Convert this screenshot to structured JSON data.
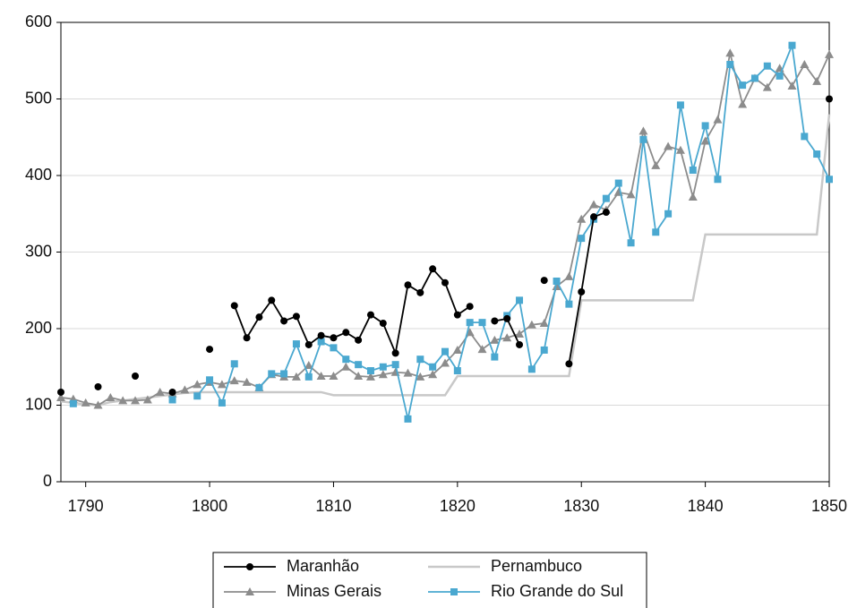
{
  "chart_data": {
    "type": "line",
    "x": [
      1788,
      1789,
      1790,
      1791,
      1792,
      1793,
      1794,
      1795,
      1796,
      1797,
      1798,
      1799,
      1800,
      1801,
      1802,
      1803,
      1804,
      1805,
      1806,
      1807,
      1808,
      1809,
      1810,
      1811,
      1812,
      1813,
      1814,
      1815,
      1816,
      1817,
      1818,
      1819,
      1820,
      1821,
      1822,
      1823,
      1824,
      1825,
      1826,
      1827,
      1828,
      1829,
      1830,
      1831,
      1832,
      1833,
      1834,
      1835,
      1836,
      1837,
      1838,
      1839,
      1840,
      1841,
      1842,
      1843,
      1844,
      1845,
      1846,
      1847,
      1848,
      1849,
      1850
    ],
    "series": [
      {
        "name": "Maranhão",
        "color": "#000000",
        "marker": "circle",
        "values": [
          117,
          null,
          null,
          124,
          null,
          null,
          138,
          null,
          null,
          117,
          null,
          null,
          173,
          null,
          230,
          188,
          215,
          237,
          210,
          216,
          179,
          191,
          188,
          195,
          185,
          218,
          207,
          168,
          257,
          247,
          278,
          260,
          218,
          229,
          null,
          210,
          213,
          179,
          null,
          263,
          null,
          154,
          248,
          346,
          352,
          null,
          null,
          null,
          null,
          null,
          null,
          null,
          null,
          null,
          null,
          null,
          null,
          null,
          null,
          null,
          null,
          null,
          500
        ]
      },
      {
        "name": "Minas Gerais",
        "color": "#8c8c8c",
        "marker": "triangle",
        "values": [
          110,
          108,
          103,
          100,
          110,
          106,
          106,
          107,
          117,
          115,
          120,
          127,
          130,
          127,
          132,
          130,
          123,
          140,
          137,
          137,
          152,
          138,
          138,
          150,
          138,
          137,
          140,
          143,
          142,
          137,
          140,
          155,
          172,
          195,
          173,
          185,
          188,
          193,
          205,
          207,
          255,
          268,
          343,
          362,
          355,
          378,
          375,
          458,
          413,
          438,
          433,
          372,
          445,
          473,
          560,
          493,
          527,
          515,
          540,
          517,
          545,
          523,
          558
        ]
      },
      {
        "name": "Pernambuco",
        "color": "#c8c8c8",
        "marker": "none",
        "values": [
          105,
          103,
          101,
          100,
          104,
          106,
          108,
          110,
          112,
          114,
          116,
          117,
          117,
          117,
          117,
          117,
          117,
          117,
          117,
          117,
          117,
          117,
          113,
          113,
          113,
          113,
          113,
          113,
          113,
          113,
          113,
          113,
          138,
          138,
          138,
          138,
          138,
          138,
          138,
          138,
          138,
          138,
          237,
          237,
          237,
          237,
          237,
          237,
          237,
          237,
          237,
          237,
          323,
          323,
          323,
          323,
          323,
          323,
          323,
          323,
          323,
          323,
          480
        ]
      },
      {
        "name": "Rio Grande do Sul",
        "color": "#4aa8d0",
        "marker": "square",
        "values": [
          null,
          102,
          null,
          null,
          null,
          null,
          null,
          null,
          null,
          107,
          null,
          112,
          133,
          103,
          154,
          null,
          123,
          141,
          141,
          180,
          137,
          183,
          175,
          160,
          153,
          145,
          150,
          153,
          82,
          160,
          150,
          170,
          145,
          208,
          208,
          163,
          217,
          237,
          147,
          172,
          262,
          232,
          318,
          343,
          370,
          390,
          312,
          447,
          326,
          350,
          492,
          407,
          465,
          395,
          545,
          518,
          527,
          543,
          530,
          570,
          451,
          428,
          395
        ]
      }
    ],
    "xlim": [
      1788,
      1850
    ],
    "xticks": [
      1790,
      1800,
      1810,
      1820,
      1830,
      1840,
      1850
    ],
    "ylim": [
      0,
      600
    ],
    "yticks": [
      0,
      100,
      200,
      300,
      400,
      500,
      600
    ],
    "grid": true,
    "legend": "bottom"
  }
}
